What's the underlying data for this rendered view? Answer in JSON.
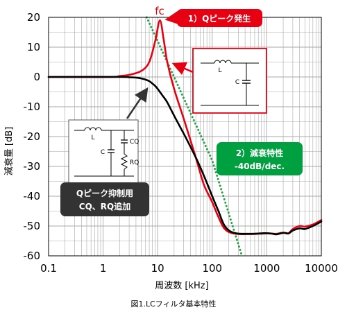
{
  "chart_data": {
    "type": "line",
    "title": "",
    "caption": "図1.LCフィルタ基本特性",
    "xlabel": "周波数 [kHz]",
    "ylabel": "減衰量 [dB]",
    "xscale": "log",
    "xlim": [
      0.1,
      10000
    ],
    "ylim": [
      -60,
      20
    ],
    "grid": true,
    "x_ticks": [
      "0.1",
      "1",
      "10",
      "100",
      "1000",
      "10000"
    ],
    "y_ticks": [
      "20",
      "10",
      "0",
      "-10",
      "-20",
      "-30",
      "-40",
      "-50",
      "-60"
    ],
    "series": [
      {
        "color": "#e60012",
        "style": "solid",
        "points": [
          [
            0.1,
            0
          ],
          [
            1.3,
            0
          ],
          [
            2,
            0.3
          ],
          [
            3,
            0.7
          ],
          [
            5,
            2
          ],
          [
            7,
            5
          ],
          [
            9,
            12
          ],
          [
            11,
            19
          ],
          [
            13,
            12
          ],
          [
            15,
            5
          ],
          [
            20,
            -4
          ],
          [
            30,
            -14
          ],
          [
            50,
            -27
          ],
          [
            70,
            -36
          ],
          [
            100,
            -42
          ],
          [
            130,
            -47
          ],
          [
            170,
            -51
          ],
          [
            250,
            -52.5
          ],
          [
            500,
            -52.7
          ],
          [
            900,
            -52.5
          ],
          [
            1200,
            -52.5
          ],
          [
            1500,
            -52.6
          ],
          [
            2000,
            -52.2
          ],
          [
            2500,
            -52.4
          ],
          [
            3000,
            -51
          ],
          [
            4000,
            -50
          ],
          [
            5000,
            -50.2
          ],
          [
            7000,
            -49.5
          ],
          [
            10000,
            -48
          ]
        ]
      },
      {
        "color": "#000000",
        "style": "solid",
        "points": [
          [
            0.1,
            0
          ],
          [
            2,
            0
          ],
          [
            3,
            -0.1
          ],
          [
            4,
            -0.2
          ],
          [
            5,
            -0.5
          ],
          [
            6,
            -0.9
          ],
          [
            7,
            -1.4
          ],
          [
            8,
            -2.2
          ],
          [
            9,
            -3
          ],
          [
            10,
            -4
          ],
          [
            12,
            -6
          ],
          [
            15,
            -8.5
          ],
          [
            20,
            -13
          ],
          [
            30,
            -19
          ],
          [
            50,
            -27
          ],
          [
            70,
            -33
          ],
          [
            100,
            -40
          ],
          [
            130,
            -45
          ],
          [
            170,
            -50
          ],
          [
            250,
            -52.3
          ],
          [
            500,
            -52.6
          ],
          [
            900,
            -52.4
          ],
          [
            1200,
            -52.5
          ],
          [
            1500,
            -52.8
          ],
          [
            2000,
            -52.3
          ],
          [
            2500,
            -52.5
          ],
          [
            3000,
            -51.5
          ],
          [
            4000,
            -50.8
          ],
          [
            5000,
            -51
          ],
          [
            7000,
            -50
          ],
          [
            10000,
            -48.5
          ]
        ]
      },
      {
        "color": "#2aa04a",
        "style": "dotted",
        "points": [
          [
            6.3,
            20
          ],
          [
            10,
            12
          ],
          [
            100,
            -28
          ],
          [
            350,
            -60
          ]
        ]
      }
    ],
    "annotations": {
      "fc": "fc",
      "callout1": "1）Qピーク発生",
      "callout2_line1": "2）減衰特性",
      "callout2_line2": "-40dB/dec.",
      "callout3_line1": "Qピーク抑制用",
      "callout3_line2": "CQ、RQ追加"
    },
    "circuit_labels": {
      "L": "L",
      "C": "C",
      "CQ": "CQ",
      "RQ": "RQ"
    },
    "colors": {
      "red": "#e60012",
      "green": "#00a040",
      "dark": "#333333",
      "grid": "#a8a8a8"
    }
  }
}
